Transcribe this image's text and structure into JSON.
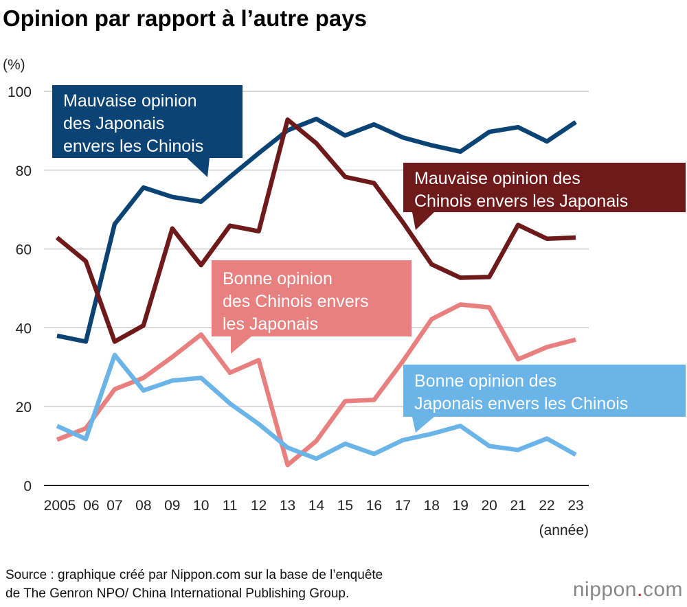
{
  "title": "Opinion par rapport à l’autre pays",
  "source_lines": [
    "Source : graphique créé par Nippon.com sur la base de l’enquête",
    "de The Genron NPO/ China International Publishing Group."
  ],
  "logo": {
    "name": "nippon",
    "dot": ".",
    "suffix": "com"
  },
  "colors": {
    "bad_jp": "#0b4474",
    "bad_cn": "#6e1a1a",
    "good_cn": "#e8807f",
    "good_jp": "#6ab4e8",
    "grid": "#bfbfbf"
  },
  "chart_data": {
    "type": "line",
    "ylabel": "(%)",
    "xlabel": "(année)",
    "ylim": [
      0,
      100
    ],
    "yticks": [
      0,
      20,
      40,
      60,
      80,
      100
    ],
    "grid": true,
    "categories": [
      "2005",
      "06",
      "07",
      "08",
      "09",
      "10",
      "11",
      "12",
      "13",
      "14",
      "15",
      "16",
      "17",
      "18",
      "19",
      "20",
      "21",
      "22",
      "23"
    ],
    "series": [
      {
        "key": "bad_jp",
        "name": "Mauvaise opinion des Japonais envers les Chinois",
        "label_lines": [
          "Mauvaise opinion",
          "des Japonais",
          "envers les Chinois"
        ],
        "values": [
          38,
          36.5,
          66.3,
          75.6,
          73.2,
          72,
          78.3,
          84.3,
          90.1,
          93,
          88.8,
          91.6,
          88.3,
          86.3,
          84.7,
          89.7,
          90.9,
          87.3,
          92.2
        ]
      },
      {
        "key": "bad_cn",
        "name": "Mauvaise opinion des Chinois envers les Japonais",
        "label_lines": [
          "Mauvaise opinion des",
          "Chinois envers les Japonais"
        ],
        "values": [
          62.9,
          56.9,
          36.5,
          40.6,
          65.2,
          55.9,
          65.9,
          64.5,
          92.8,
          86.8,
          78.3,
          76.7,
          66.8,
          56.1,
          52.7,
          52.9,
          66.1,
          62.6,
          62.9
        ]
      },
      {
        "key": "good_cn",
        "name": "Bonne opinion des Chinois envers les Japonais",
        "label_lines": [
          "Bonne opinion",
          "des Chinois envers",
          "les Japonais"
        ],
        "values": [
          11.6,
          14.5,
          24.4,
          27.3,
          32.6,
          38.3,
          28.6,
          31.8,
          5.2,
          11.3,
          21.4,
          21.7,
          31.5,
          42.2,
          45.9,
          45.2,
          32,
          35.1,
          37
        ]
      },
      {
        "key": "good_jp",
        "name": "Bonne opinion des Japonais envers les Chinois",
        "label_lines": [
          "Bonne opinion des",
          "Japonais envers les Chinois"
        ],
        "values": [
          15.1,
          11.8,
          33.1,
          24.1,
          26.6,
          27.3,
          20.8,
          15.6,
          9.6,
          6.8,
          10.6,
          8,
          11.5,
          13.1,
          15.1,
          10,
          9,
          11.9,
          7.8
        ]
      }
    ]
  }
}
